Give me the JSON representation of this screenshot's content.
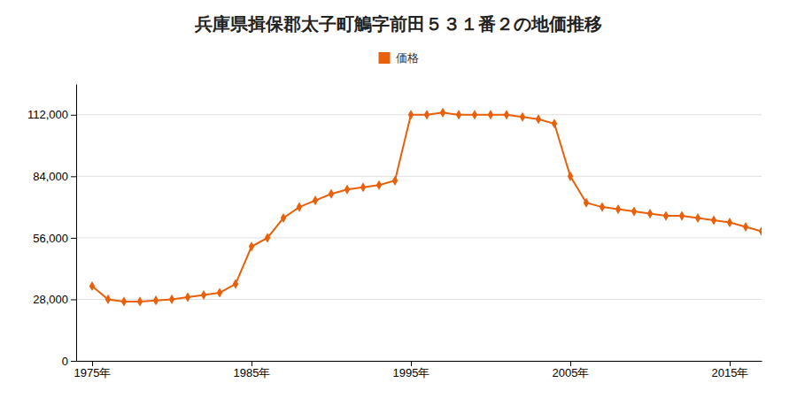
{
  "chart_data": {
    "type": "line",
    "title": "兵庫県揖保郡太子町鵤字前田５３１番２の地価推移",
    "x": [
      1975,
      1976,
      1977,
      1978,
      1979,
      1980,
      1981,
      1982,
      1983,
      1984,
      1985,
      1986,
      1987,
      1988,
      1989,
      1990,
      1991,
      1992,
      1993,
      1994,
      1995,
      1996,
      1997,
      1998,
      1999,
      2000,
      2001,
      2002,
      2003,
      2004,
      2005,
      2006,
      2007,
      2008,
      2009,
      2010,
      2011,
      2012,
      2013,
      2014,
      2015,
      2016,
      2017
    ],
    "series": [
      {
        "name": "価格",
        "color": "#E8600A",
        "marker": "diamond",
        "values": [
          34000,
          28000,
          27000,
          27000,
          27500,
          28000,
          29000,
          30000,
          31000,
          35000,
          52000,
          56000,
          65000,
          70000,
          73000,
          76000,
          78000,
          79000,
          80000,
          82000,
          112000,
          112000,
          113000,
          112000,
          112000,
          112000,
          112000,
          111000,
          110000,
          108000,
          84000,
          72000,
          70000,
          69000,
          68000,
          67000,
          66000,
          66000,
          65000,
          64000,
          63000,
          61000,
          59000
        ]
      }
    ],
    "xlim": [
      1974,
      2017
    ],
    "xticks": [
      {
        "value": 1975,
        "label": "1975年"
      },
      {
        "value": 1985,
        "label": "1985年"
      },
      {
        "value": 1995,
        "label": "1995年"
      },
      {
        "value": 2005,
        "label": "2005年"
      },
      {
        "value": 2015,
        "label": "2015年"
      }
    ],
    "ylim": [
      0,
      126000
    ],
    "yticks": [
      0,
      {
        "value": 28000,
        "label": "28,000"
      },
      {
        "value": 56000,
        "label": "56,000"
      },
      {
        "value": 84000,
        "label": "84,000"
      },
      {
        "value": 112000,
        "label": "112,000"
      }
    ],
    "grid": true,
    "legend": "top"
  }
}
